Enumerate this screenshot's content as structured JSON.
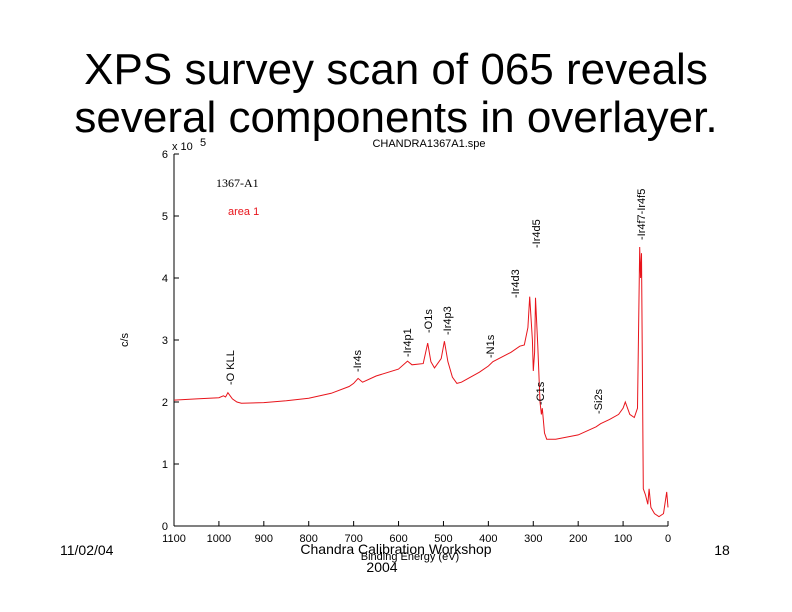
{
  "title_lines": [
    "XPS survey scan of 065 reveals",
    "several components in overlayer."
  ],
  "footer": {
    "date": "11/02/04",
    "event": "Chandra Calibration Workshop",
    "year": "2004",
    "page": "18"
  },
  "chart_data": {
    "type": "line",
    "title": "CHANDRA1367A1.spe",
    "y_multiplier": "x 10",
    "y_exponent": "5",
    "xlabel": "Binding Energy (eV)",
    "ylabel": "c/s",
    "sample_label": "1367-A1",
    "area_label": "area 1",
    "annotations": [
      "-O KLL",
      "-Ir4s",
      "-Ir4p1",
      "-O1s",
      "-Ir4p3",
      "-N1s",
      "-Ir4d3",
      "-Ir4d5",
      "-C1s",
      "-Si2s",
      "-Ir4f7-Ir4f5"
    ],
    "xlim": [
      1100,
      0
    ],
    "xticks": [
      1100,
      1000,
      900,
      800,
      700,
      600,
      500,
      400,
      300,
      200,
      100,
      0
    ],
    "ylim": [
      0,
      6
    ],
    "yticks": [
      0,
      1,
      2,
      3,
      4,
      5,
      6
    ],
    "series": [
      {
        "name": "area 1",
        "color": "#e8141b",
        "x": [
          1100,
          1050,
          1000,
          990,
          985,
          980,
          970,
          960,
          950,
          900,
          850,
          800,
          750,
          710,
          700,
          690,
          680,
          650,
          600,
          580,
          570,
          545,
          535,
          528,
          520,
          505,
          498,
          490,
          480,
          470,
          460,
          420,
          400,
          390,
          350,
          330,
          320,
          312,
          308,
          302,
          300,
          297,
          295,
          290,
          285,
          282,
          280,
          275,
          270,
          250,
          200,
          160,
          150,
          130,
          110,
          100,
          95,
          85,
          75,
          68,
          63,
          61,
          59,
          57,
          55,
          50,
          45,
          42,
          38,
          30,
          20,
          10,
          3,
          0
        ],
        "values": [
          2.03,
          2.05,
          2.07,
          2.1,
          2.08,
          2.15,
          2.05,
          2.0,
          1.98,
          1.99,
          2.02,
          2.06,
          2.14,
          2.25,
          2.3,
          2.38,
          2.32,
          2.42,
          2.53,
          2.66,
          2.6,
          2.62,
          2.95,
          2.65,
          2.55,
          2.7,
          2.98,
          2.65,
          2.4,
          2.3,
          2.32,
          2.48,
          2.58,
          2.65,
          2.8,
          2.9,
          2.92,
          3.2,
          3.7,
          3.0,
          2.5,
          2.8,
          3.68,
          2.9,
          2.0,
          1.8,
          1.9,
          1.5,
          1.4,
          1.4,
          1.47,
          1.6,
          1.65,
          1.72,
          1.8,
          1.9,
          2.0,
          1.8,
          1.75,
          1.9,
          4.5,
          4.0,
          4.4,
          2.5,
          0.6,
          0.5,
          0.35,
          0.6,
          0.3,
          0.2,
          0.15,
          0.2,
          0.55,
          0.3
        ]
      }
    ]
  }
}
